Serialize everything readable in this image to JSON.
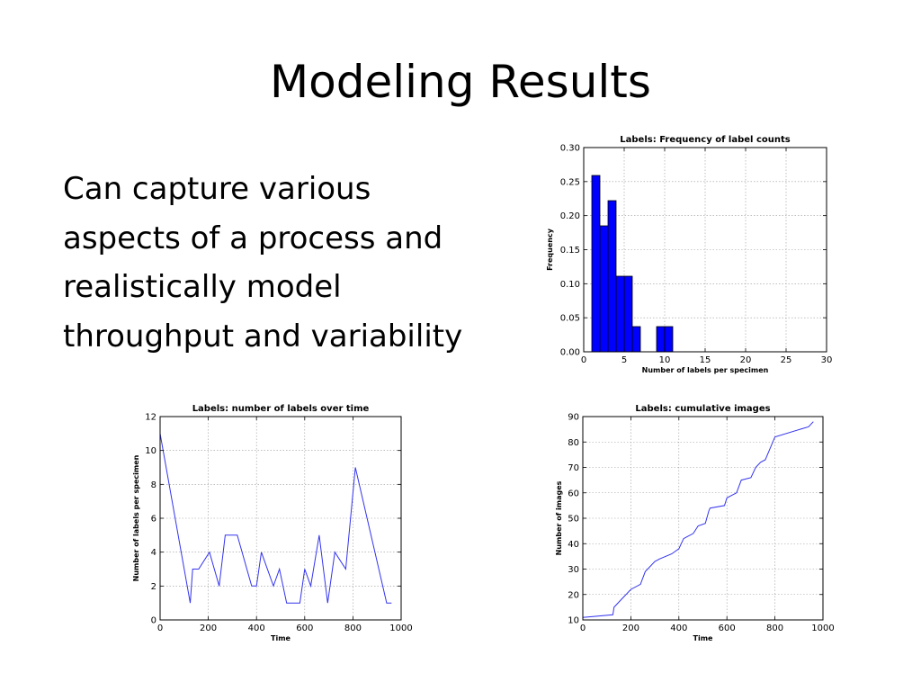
{
  "slide": {
    "title": "Modeling Results",
    "body_lines": [
      "Can capture various",
      "aspects of a process and",
      "realistically model",
      "throughput and variability"
    ]
  },
  "colors": {
    "bar_fill": "#0000ff",
    "line": "#3333ee",
    "grid": "#999999"
  },
  "chart_data": [
    {
      "id": "hist",
      "type": "bar",
      "title": "Labels: Frequency of label counts",
      "xlabel": "Number of labels per specimen",
      "ylabel": "Frequency",
      "xlim": [
        0,
        30
      ],
      "ylim": [
        0,
        0.3
      ],
      "xticks": [
        0,
        5,
        10,
        15,
        20,
        25,
        30
      ],
      "yticks": [
        0.0,
        0.05,
        0.1,
        0.15,
        0.2,
        0.25,
        0.3
      ],
      "ytick_labels": [
        "0.00",
        "0.05",
        "0.10",
        "0.15",
        "0.20",
        "0.25",
        "0.30"
      ],
      "grid": true,
      "bars": [
        {
          "x0": 1.0,
          "x1": 2.0,
          "value": 0.259
        },
        {
          "x0": 2.0,
          "x1": 3.0,
          "value": 0.185
        },
        {
          "x0": 3.0,
          "x1": 4.0,
          "value": 0.222
        },
        {
          "x0": 4.0,
          "x1": 5.0,
          "value": 0.111
        },
        {
          "x0": 5.0,
          "x1": 6.0,
          "value": 0.111
        },
        {
          "x0": 6.0,
          "x1": 7.0,
          "value": 0.037
        },
        {
          "x0": 9.0,
          "x1": 10.0,
          "value": 0.037
        },
        {
          "x0": 10.0,
          "x1": 11.0,
          "value": 0.037
        }
      ]
    },
    {
      "id": "labels_time",
      "type": "line",
      "title": "Labels: number of labels over time",
      "xlabel": "Time",
      "ylabel": "Number of labels per specimen",
      "xlim": [
        0,
        1000
      ],
      "ylim": [
        0,
        12
      ],
      "xticks": [
        0,
        200,
        400,
        600,
        800,
        1000
      ],
      "yticks": [
        0,
        2,
        4,
        6,
        8,
        10,
        12
      ],
      "ytick_labels": [
        "0",
        "2",
        "4",
        "6",
        "8",
        "10",
        "12"
      ],
      "grid": true,
      "x": [
        0,
        125,
        135,
        160,
        205,
        245,
        270,
        320,
        380,
        400,
        420,
        470,
        495,
        525,
        580,
        600,
        625,
        660,
        695,
        725,
        770,
        810,
        940,
        960
      ],
      "y": [
        11,
        1,
        3,
        3,
        4,
        2,
        5,
        5,
        2,
        2,
        4,
        2,
        3,
        1,
        1,
        3,
        2,
        5,
        1,
        4,
        3,
        9,
        1,
        1
      ]
    },
    {
      "id": "cumulative",
      "type": "line",
      "title": "Labels: cumulative images",
      "xlabel": "Time",
      "ylabel": "Number of images",
      "xlim": [
        0,
        1000
      ],
      "ylim": [
        10,
        90
      ],
      "xticks": [
        0,
        200,
        400,
        600,
        800,
        1000
      ],
      "yticks": [
        10,
        20,
        30,
        40,
        50,
        60,
        70,
        80,
        90
      ],
      "ytick_labels": [
        "10",
        "20",
        "30",
        "40",
        "50",
        "60",
        "70",
        "80",
        "90"
      ],
      "grid": true,
      "x": [
        0,
        125,
        130,
        160,
        200,
        240,
        260,
        300,
        320,
        370,
        400,
        420,
        460,
        480,
        510,
        525,
        530,
        590,
        600,
        620,
        640,
        660,
        700,
        720,
        740,
        760,
        800,
        940,
        960
      ],
      "y": [
        11,
        12,
        15,
        18,
        22,
        24,
        29,
        33,
        34,
        36,
        38,
        42,
        44,
        47,
        48,
        53,
        54,
        55,
        58,
        59,
        60,
        65,
        66,
        70,
        72,
        73,
        82,
        86,
        88
      ]
    }
  ]
}
